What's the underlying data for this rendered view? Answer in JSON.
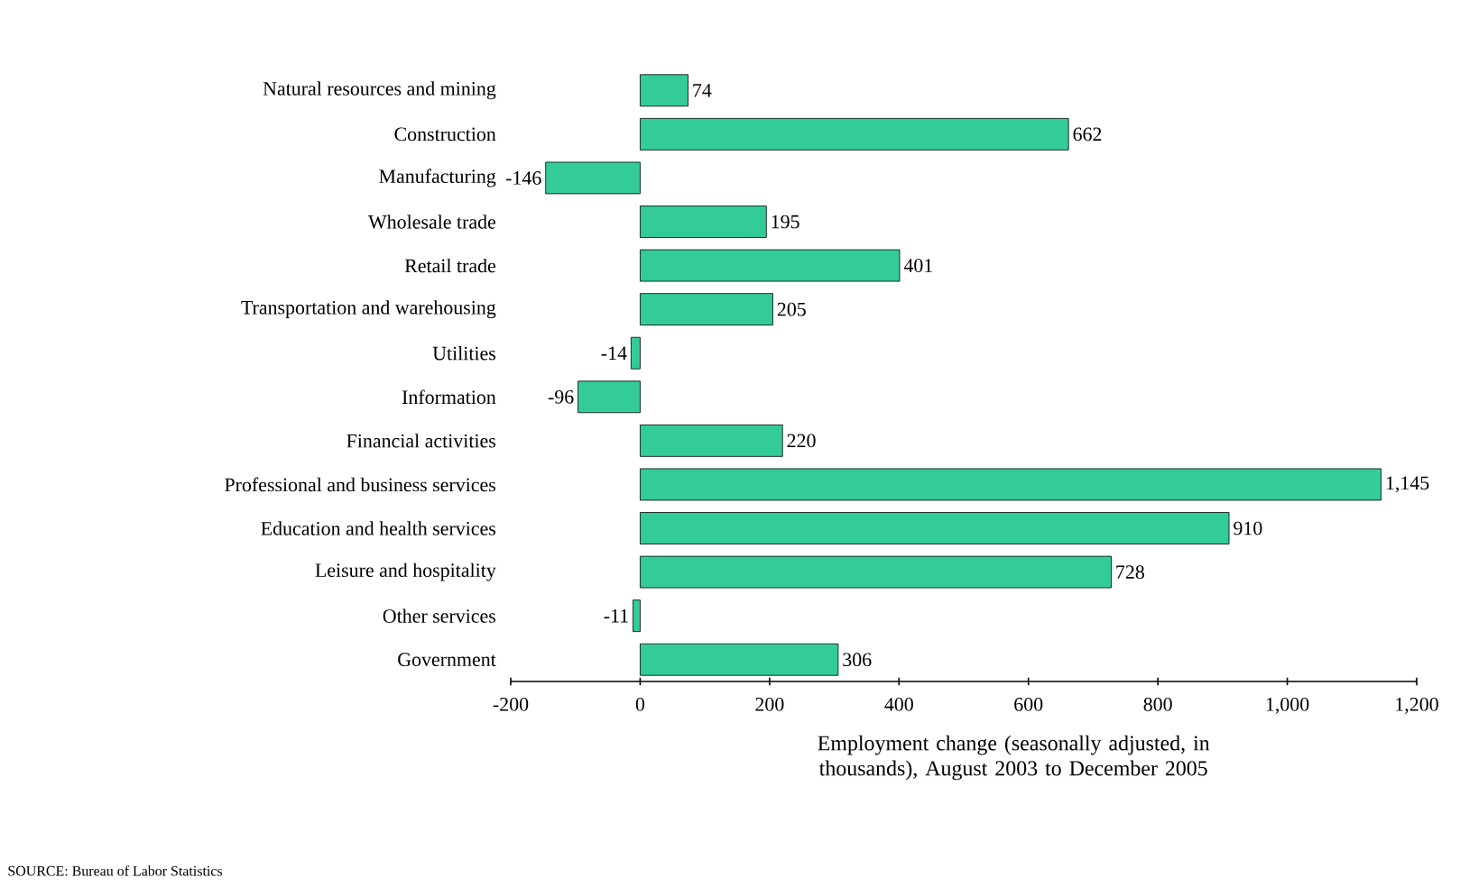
{
  "chart_data": {
    "type": "bar",
    "orientation": "horizontal",
    "categories": [
      "Natural resources and mining",
      "Construction",
      "Manufacturing",
      "Wholesale trade",
      "Retail trade",
      "Transportation and warehousing",
      "Utilities",
      "Information",
      "Financial activities",
      "Professional and business services",
      "Education and health services",
      "Leisure and hospitality",
      "Other services",
      "Government"
    ],
    "values": [
      74,
      662,
      -146,
      195,
      401,
      205,
      -14,
      -96,
      220,
      1145,
      910,
      728,
      -11,
      306
    ],
    "value_labels": [
      "74",
      "662",
      "-146",
      "195",
      "401",
      "205",
      "-14",
      "-96",
      "220",
      "1,145",
      "910",
      "728",
      "-11",
      "306"
    ],
    "color": "#33cc99",
    "xlim": [
      -200,
      1200
    ],
    "xticks": [
      -200,
      0,
      200,
      400,
      600,
      800,
      {
        "value": 1000,
        "label": "1,000"
      },
      {
        "value": 1200,
        "label": "1,200"
      }
    ],
    "xlabel": "Employment change (seasonally adjusted, in thousands), August 2003 to December 2005",
    "annotations": [
      "SOURCE:  Bureau of Labor Statistics"
    ]
  }
}
